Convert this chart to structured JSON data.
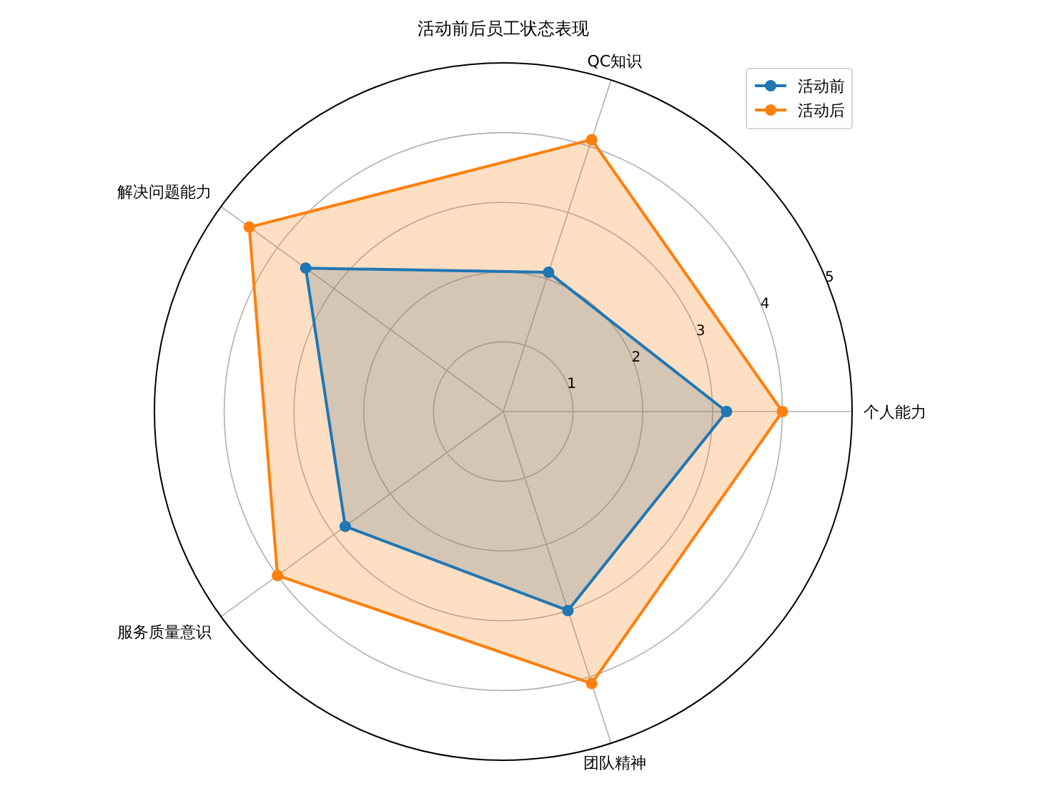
{
  "chart_data": {
    "type": "radar",
    "title": "活动前后员工状态表现",
    "categories": [
      "QC知识",
      "个人能力",
      "团队精神",
      "服务质量意识",
      "解决问题能力"
    ],
    "series": [
      {
        "name": "活动前",
        "color": "#1f77b4",
        "values": [
          2.1,
          3.2,
          3.0,
          2.8,
          3.5
        ]
      },
      {
        "name": "活动后",
        "color": "#ff7f0e",
        "values": [
          4.1,
          4.0,
          4.1,
          4.0,
          4.5
        ]
      }
    ],
    "ylim": [
      0,
      5
    ],
    "yticks": [
      1,
      2,
      3,
      4,
      5
    ],
    "grid": true,
    "legend": "top right",
    "marker": "circle",
    "line_style": "solid"
  }
}
